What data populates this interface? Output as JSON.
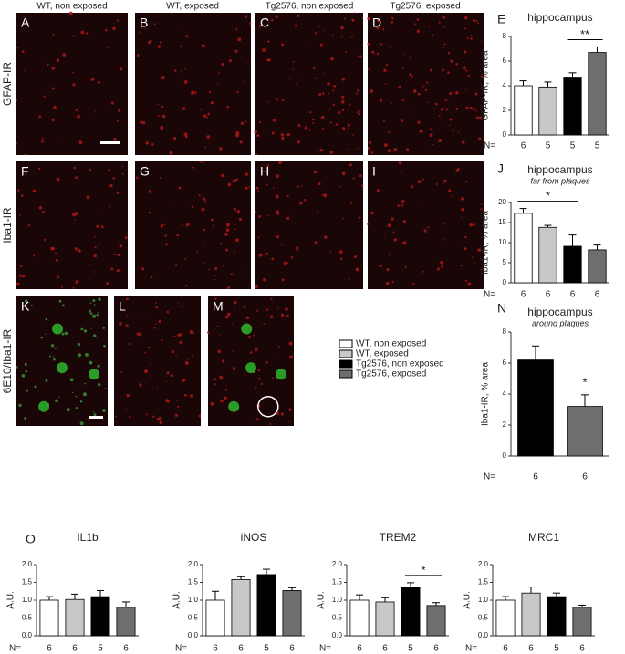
{
  "figure": {
    "column_headers": [
      "WT, non exposed",
      "WT, exposed",
      "Tg2576, non exposed",
      "Tg2576, exposed"
    ],
    "row_labels": [
      "GFAP-IR",
      "Iba1-IR",
      "6E10/Iba1-IR"
    ],
    "image_panels": [
      "A",
      "B",
      "C",
      "D",
      "F",
      "G",
      "H",
      "I",
      "K",
      "L",
      "M"
    ],
    "chart_panels": [
      "E",
      "J",
      "N",
      "O"
    ],
    "legend": [
      {
        "name": "WT, non exposed",
        "color": "#ffffff"
      },
      {
        "name": "WT, exposed",
        "color": "#c8c8c8"
      },
      {
        "name": "Tg2576, non exposed",
        "color": "#000000"
      },
      {
        "name": "Tg2576, exposed",
        "color": "#6e6e6e"
      }
    ]
  },
  "chart_data": [
    {
      "type": "bar",
      "title": "hippocampus",
      "ylabel": "GFAP-IR, % area",
      "count_label": "N=",
      "categories": [
        null,
        null,
        null,
        null
      ],
      "values": [
        4.0,
        3.9,
        4.7,
        6.7
      ],
      "errors": [
        0.4,
        0.4,
        0.35,
        0.45
      ],
      "counts": [
        6,
        5,
        5,
        5
      ],
      "colors": [
        "#ffffff",
        "#c8c8c8",
        "#000000",
        "#6e6e6e"
      ],
      "ylim": [
        0,
        8
      ],
      "yticks": [
        0,
        2,
        4,
        6,
        8
      ],
      "annotation": "**"
    },
    {
      "type": "bar",
      "title": "hippocampus",
      "subtitle": "far from plaques",
      "ylabel": "Iba1-IR, % area",
      "count_label": "N=",
      "categories": [
        null,
        null,
        null,
        null
      ],
      "values": [
        17.3,
        13.8,
        9.1,
        8.2
      ],
      "errors": [
        1.2,
        0.5,
        2.8,
        1.2
      ],
      "counts": [
        6,
        6,
        6,
        6
      ],
      "colors": [
        "#ffffff",
        "#c8c8c8",
        "#000000",
        "#6e6e6e"
      ],
      "ylim": [
        0,
        20
      ],
      "yticks": [
        0,
        5,
        10,
        15,
        20
      ],
      "annotation": "*"
    },
    {
      "type": "bar",
      "title": "hippocampus",
      "subtitle": "around plaques",
      "ylabel": "Iba1-IR, % area",
      "count_label": "N=",
      "categories": [
        null,
        null
      ],
      "values": [
        6.2,
        3.2
      ],
      "errors": [
        0.9,
        0.75
      ],
      "counts": [
        6,
        6
      ],
      "colors": [
        "#000000",
        "#6e6e6e"
      ],
      "ylim": [
        0,
        8
      ],
      "yticks": [
        0,
        2,
        4,
        6,
        8
      ],
      "annotation": "*"
    },
    {
      "type": "bar",
      "title": "IL1b",
      "ylabel": "A.U.",
      "count_label": "N=",
      "categories": [
        null,
        null,
        null,
        null
      ],
      "values": [
        1.0,
        1.02,
        1.1,
        0.8
      ],
      "errors": [
        0.1,
        0.15,
        0.17,
        0.15
      ],
      "counts": [
        6,
        6,
        5,
        6
      ],
      "colors": [
        "#ffffff",
        "#c8c8c8",
        "#000000",
        "#6e6e6e"
      ],
      "ylim": [
        0,
        2
      ],
      "yticks": [
        {
          "value": 0,
          "label": "0.0"
        },
        0.5,
        {
          "value": 1,
          "label": "1.0"
        },
        1.5,
        {
          "value": 2,
          "label": "2.0"
        }
      ]
    },
    {
      "type": "bar",
      "title": "iNOS",
      "ylabel": "A.U.",
      "count_label": "N=",
      "categories": [
        null,
        null,
        null,
        null
      ],
      "values": [
        1.0,
        1.58,
        1.72,
        1.27
      ],
      "errors": [
        0.25,
        0.08,
        0.15,
        0.08
      ],
      "counts": [
        6,
        6,
        5,
        6
      ],
      "colors": [
        "#ffffff",
        "#c8c8c8",
        "#000000",
        "#6e6e6e"
      ],
      "ylim": [
        0,
        2
      ],
      "yticks": [
        {
          "value": 0,
          "label": "0.0"
        },
        0.5,
        {
          "value": 1,
          "label": "1.0"
        },
        1.5,
        {
          "value": 2,
          "label": "2.0"
        }
      ]
    },
    {
      "type": "bar",
      "title": "TREM2",
      "ylabel": "A.U.",
      "count_label": "N=",
      "categories": [
        null,
        null,
        null,
        null
      ],
      "values": [
        1.0,
        0.95,
        1.37,
        0.85
      ],
      "errors": [
        0.15,
        0.12,
        0.12,
        0.08
      ],
      "counts": [
        6,
        6,
        5,
        6
      ],
      "colors": [
        "#ffffff",
        "#c8c8c8",
        "#000000",
        "#6e6e6e"
      ],
      "ylim": [
        0,
        2
      ],
      "yticks": [
        {
          "value": 0,
          "label": "0.0"
        },
        0.5,
        {
          "value": 1,
          "label": "1.0"
        },
        1.5,
        {
          "value": 2,
          "label": "2.0"
        }
      ],
      "annotation": "*"
    },
    {
      "type": "bar",
      "title": "MRC1",
      "ylabel": "A.U.",
      "count_label": "N=",
      "categories": [
        null,
        null,
        null,
        null
      ],
      "values": [
        1.0,
        1.2,
        1.1,
        0.8
      ],
      "errors": [
        0.1,
        0.17,
        0.1,
        0.06
      ],
      "counts": [
        6,
        6,
        5,
        6
      ],
      "colors": [
        "#ffffff",
        "#c8c8c8",
        "#000000",
        "#6e6e6e"
      ],
      "ylim": [
        0,
        2
      ],
      "yticks": [
        {
          "value": 0,
          "label": "0.0"
        },
        0.5,
        {
          "value": 1,
          "label": "1.0"
        },
        1.5,
        {
          "value": 2,
          "label": "2.0"
        }
      ]
    }
  ]
}
